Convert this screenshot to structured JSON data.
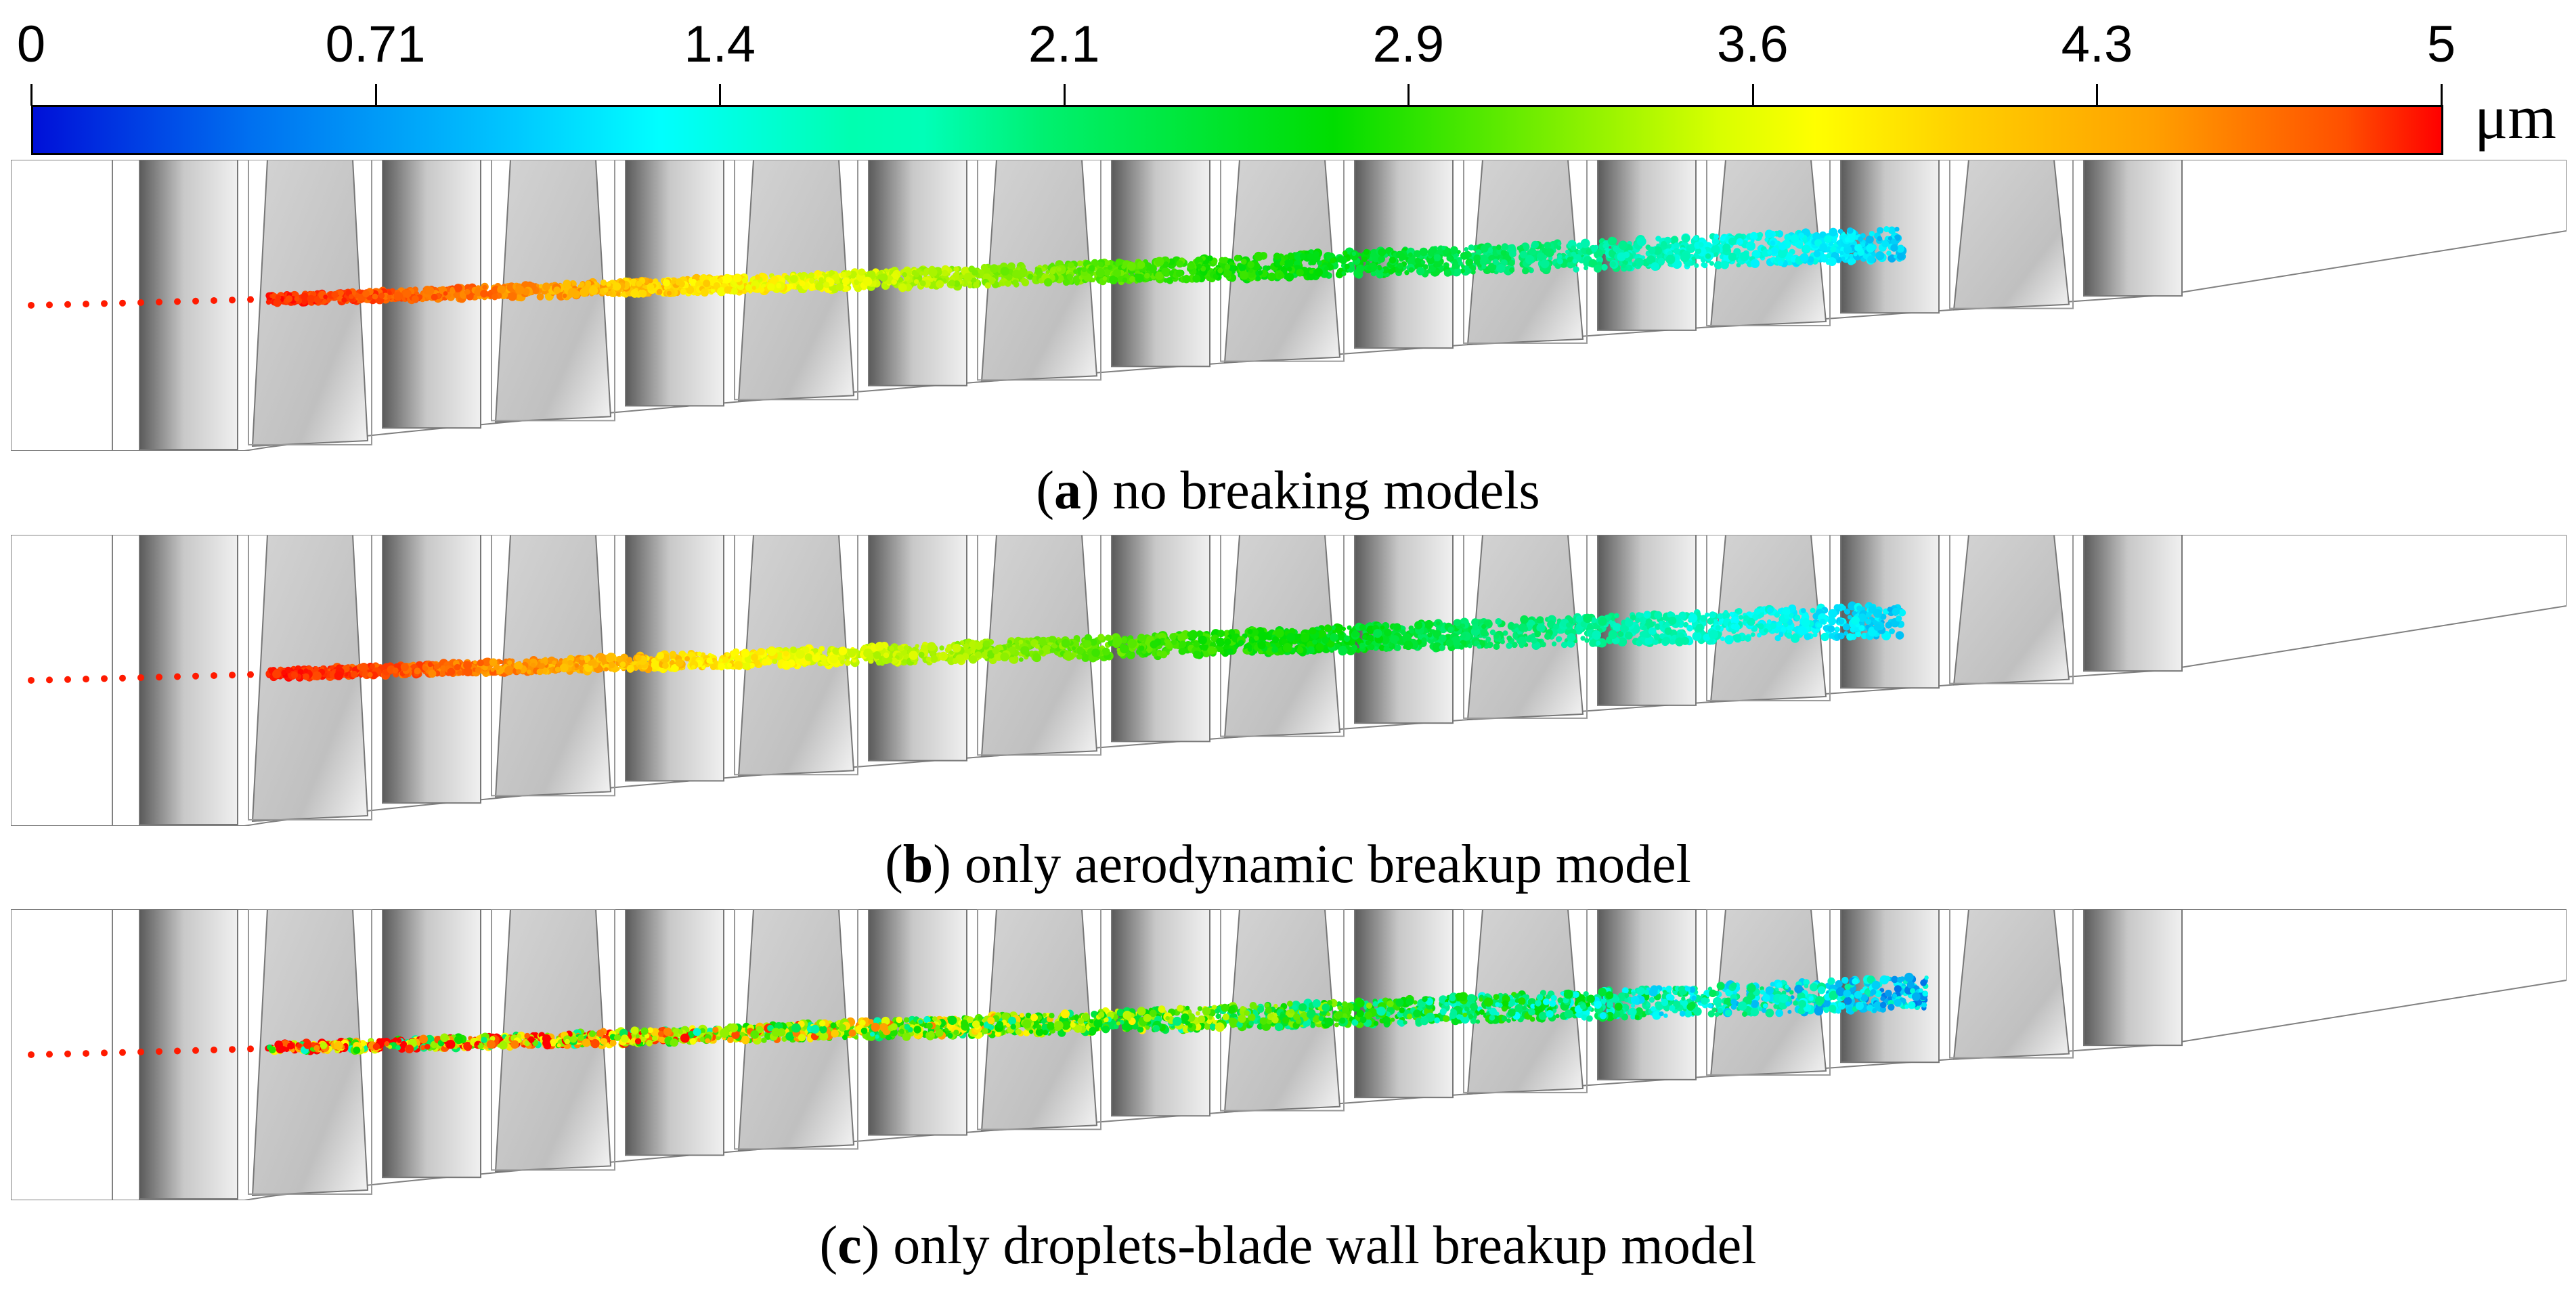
{
  "colorbar": {
    "ticks": [
      "0",
      "0.71",
      "1.4",
      "2.1",
      "2.9",
      "3.6",
      "4.3",
      "5"
    ],
    "unit": "μm",
    "min": 0,
    "max": 5,
    "colors": [
      "#0010d8",
      "#00ffff",
      "#00dd00",
      "#ffff00",
      "#ff0000"
    ]
  },
  "panels": [
    {
      "letter": "a",
      "caption": " no breaking models",
      "mode": "smooth"
    },
    {
      "letter": "b",
      "caption": " only aerodynamic breakup model",
      "mode": "smooth"
    },
    {
      "letter": "c",
      "caption": " only droplets-blade wall breakup model",
      "mode": "mixed"
    }
  ]
}
